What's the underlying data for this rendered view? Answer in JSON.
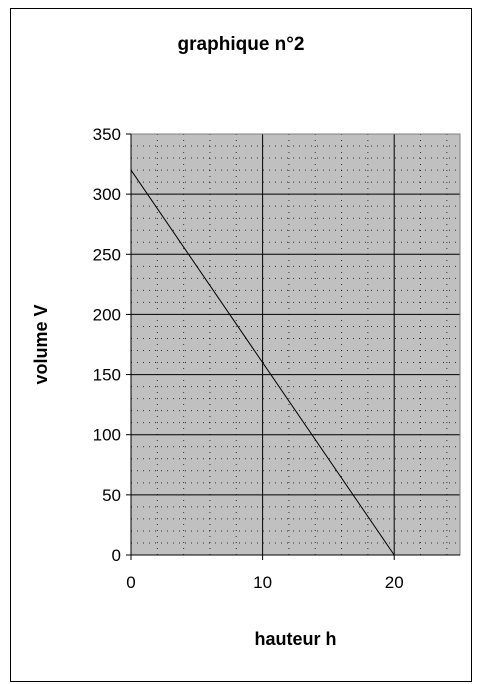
{
  "chart_data": {
    "type": "line",
    "title": "graphique n°2",
    "xlabel": "hauteur h",
    "ylabel": "volume V",
    "xlim": [
      0,
      25
    ],
    "ylim": [
      0,
      350
    ],
    "xticks": [
      0,
      10,
      20
    ],
    "yticks": [
      0,
      50,
      100,
      150,
      200,
      250,
      300,
      350
    ],
    "grid": true,
    "minor_grid": "dotted",
    "plot_background": "#c0c0c0",
    "series": [
      {
        "x": [
          0,
          20
        ],
        "y": [
          320,
          0
        ],
        "color": "#000000"
      }
    ]
  }
}
